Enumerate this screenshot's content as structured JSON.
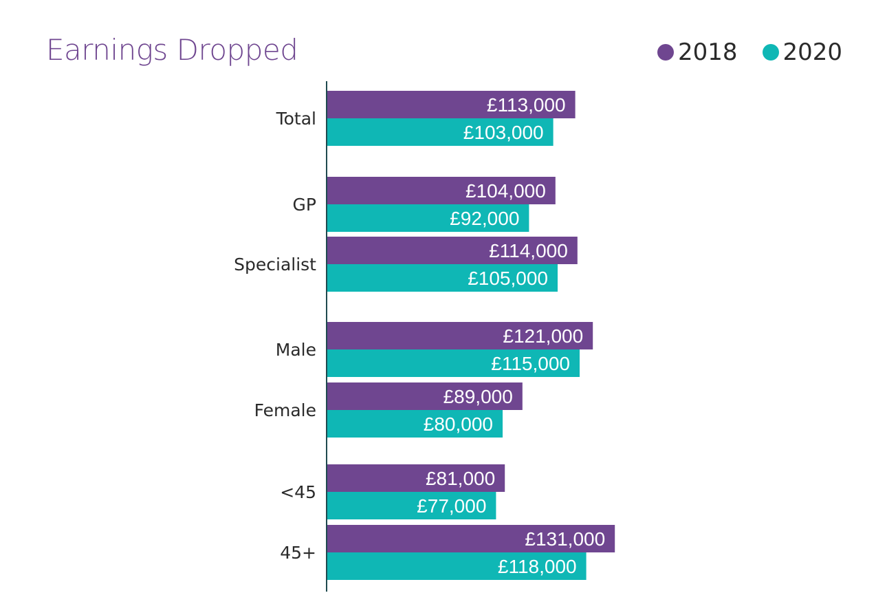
{
  "chart_data": {
    "type": "bar",
    "orientation": "horizontal",
    "title": "Earnings Dropped",
    "categories": [
      "Total",
      "GP",
      "Specialist",
      "Male",
      "Female",
      "<45",
      "45+"
    ],
    "series": [
      {
        "name": "2018",
        "color": "#6f4690",
        "values": [
          113000,
          104000,
          114000,
          121000,
          89000,
          81000,
          131000
        ],
        "labels": [
          "£113,000",
          "£104,000",
          "£114,000",
          "£121,000",
          "£89,000",
          "£81,000",
          "£131,000"
        ]
      },
      {
        "name": "2020",
        "color": "#0fb7b5",
        "values": [
          103000,
          92000,
          105000,
          115000,
          80000,
          77000,
          118000
        ],
        "labels": [
          "£103,000",
          "£92,000",
          "£105,000",
          "£115,000",
          "£80,000",
          "£77,000",
          "£118,000"
        ]
      }
    ],
    "xlim": [
      0,
      140000
    ],
    "grid": false,
    "legend_position": "top-right"
  }
}
